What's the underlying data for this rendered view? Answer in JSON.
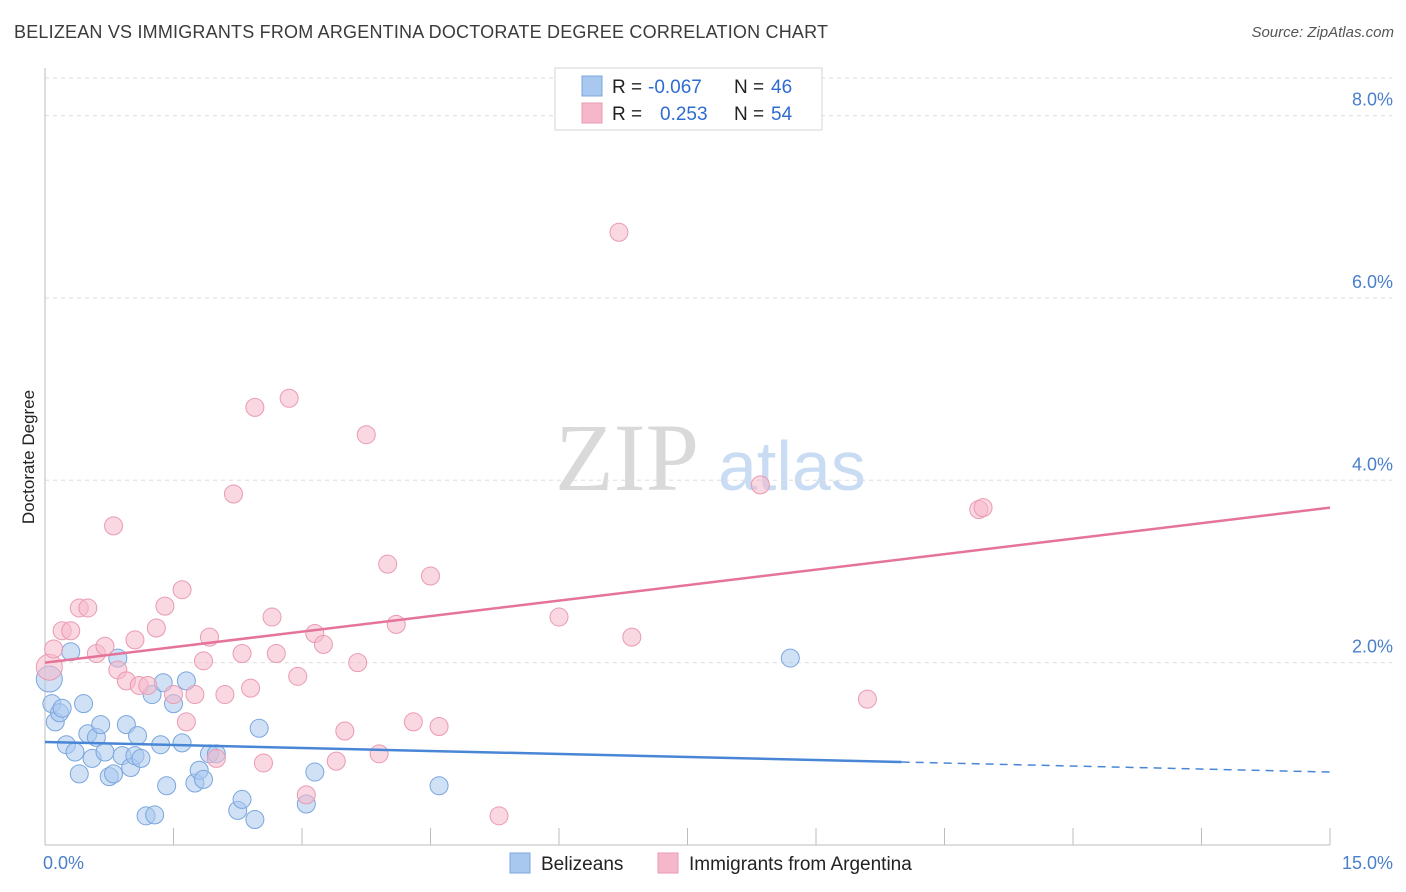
{
  "header": {
    "title": "BELIZEAN VS IMMIGRANTS FROM ARGENTINA DOCTORATE DEGREE CORRELATION CHART",
    "source": "Source: ZipAtlas.com"
  },
  "watermark": {
    "zip": "ZIP",
    "atlas": "atlas"
  },
  "legend": {
    "rows": [
      {
        "r_label": "R =",
        "r_value": "-0.067",
        "n_label": "N =",
        "n_value": "46",
        "color": "#a9c8ef"
      },
      {
        "r_label": "R =",
        "r_value": "0.253",
        "n_label": "N =",
        "n_value": "54",
        "color": "#f5b8cb"
      }
    ]
  },
  "bottom_legend": [
    {
      "label": "Belizeans",
      "color": "#a9c8ef"
    },
    {
      "label": "Immigrants from Argentina",
      "color": "#f5b8cb"
    }
  ],
  "chart_data": {
    "type": "scatter",
    "title": "BELIZEAN VS IMMIGRANTS FROM ARGENTINA DOCTORATE DEGREE CORRELATION CHART",
    "xlabel": "",
    "ylabel": "Doctorate Degree",
    "xlim": [
      0,
      15
    ],
    "ylim": [
      0,
      8.5
    ],
    "x_tick_labels": [
      "0.0%",
      "15.0%"
    ],
    "y_ticks": [
      2,
      4,
      6,
      8
    ],
    "y_tick_labels": [
      "2.0%",
      "4.0%",
      "6.0%",
      "8.0%"
    ],
    "grid": true,
    "colors": {
      "belizeans": "#4a86d6",
      "argentina": "#e5739a"
    },
    "series": [
      {
        "name": "Belizeans",
        "color": "#a9c8ef",
        "edge": "#7aa6dd",
        "trend": {
          "x0": 0,
          "y0": 1.13,
          "x1": 10.0,
          "y1": 0.91,
          "dash_x1": 15.0,
          "dash_y1": 0.8
        },
        "points": [
          [
            0.05,
            1.82
          ],
          [
            0.08,
            1.55
          ],
          [
            0.12,
            1.35
          ],
          [
            0.17,
            1.45
          ],
          [
            0.2,
            1.5
          ],
          [
            0.25,
            1.1
          ],
          [
            0.3,
            2.12
          ],
          [
            0.35,
            1.02
          ],
          [
            0.4,
            0.78
          ],
          [
            0.45,
            1.55
          ],
          [
            0.5,
            1.22
          ],
          [
            0.55,
            0.95
          ],
          [
            0.6,
            1.18
          ],
          [
            0.65,
            1.32
          ],
          [
            0.7,
            1.02
          ],
          [
            0.75,
            0.75
          ],
          [
            0.8,
            0.78
          ],
          [
            0.85,
            2.05
          ],
          [
            0.9,
            0.98
          ],
          [
            0.95,
            1.32
          ],
          [
            1.0,
            0.85
          ],
          [
            1.05,
            0.98
          ],
          [
            1.08,
            1.2
          ],
          [
            1.12,
            0.95
          ],
          [
            1.18,
            0.32
          ],
          [
            1.25,
            1.65
          ],
          [
            1.28,
            0.33
          ],
          [
            1.35,
            1.1
          ],
          [
            1.38,
            1.78
          ],
          [
            1.42,
            0.65
          ],
          [
            1.5,
            1.55
          ],
          [
            1.6,
            1.12
          ],
          [
            1.65,
            1.8
          ],
          [
            1.75,
            0.68
          ],
          [
            1.8,
            0.82
          ],
          [
            1.85,
            0.72
          ],
          [
            1.92,
            1.0
          ],
          [
            2.0,
            1.0
          ],
          [
            2.25,
            0.38
          ],
          [
            2.3,
            0.5
          ],
          [
            2.45,
            0.28
          ],
          [
            2.5,
            1.28
          ],
          [
            3.05,
            0.45
          ],
          [
            3.15,
            0.8
          ],
          [
            4.6,
            0.65
          ],
          [
            8.7,
            2.05
          ]
        ]
      },
      {
        "name": "Immigrants from Argentina",
        "color": "#f5b8cb",
        "edge": "#ea9ab3",
        "trend": {
          "x0": 0,
          "y0": 2.0,
          "x1": 15.0,
          "y1": 3.7
        },
        "points": [
          [
            0.05,
            1.95
          ],
          [
            0.1,
            2.15
          ],
          [
            0.2,
            2.35
          ],
          [
            0.3,
            2.35
          ],
          [
            0.4,
            2.6
          ],
          [
            0.5,
            2.6
          ],
          [
            0.6,
            2.1
          ],
          [
            0.7,
            2.18
          ],
          [
            0.8,
            3.5
          ],
          [
            0.85,
            1.92
          ],
          [
            0.95,
            1.8
          ],
          [
            1.05,
            2.25
          ],
          [
            1.1,
            1.75
          ],
          [
            1.2,
            1.75
          ],
          [
            1.3,
            2.38
          ],
          [
            1.4,
            2.62
          ],
          [
            1.5,
            1.65
          ],
          [
            1.6,
            2.8
          ],
          [
            1.65,
            1.35
          ],
          [
            1.75,
            1.65
          ],
          [
            1.85,
            2.02
          ],
          [
            1.92,
            2.28
          ],
          [
            2.0,
            0.95
          ],
          [
            2.1,
            1.65
          ],
          [
            2.2,
            3.85
          ],
          [
            2.3,
            2.1
          ],
          [
            2.4,
            1.72
          ],
          [
            2.45,
            4.8
          ],
          [
            2.55,
            0.9
          ],
          [
            2.65,
            2.5
          ],
          [
            2.7,
            2.1
          ],
          [
            2.85,
            4.9
          ],
          [
            2.95,
            1.85
          ],
          [
            3.05,
            0.55
          ],
          [
            3.15,
            2.32
          ],
          [
            3.25,
            2.2
          ],
          [
            3.4,
            0.92
          ],
          [
            3.5,
            1.25
          ],
          [
            3.65,
            2.0
          ],
          [
            3.75,
            4.5
          ],
          [
            3.9,
            1.0
          ],
          [
            4.0,
            3.08
          ],
          [
            4.1,
            2.42
          ],
          [
            4.3,
            1.35
          ],
          [
            4.5,
            2.95
          ],
          [
            4.6,
            1.3
          ],
          [
            5.3,
            0.32
          ],
          [
            6.0,
            2.5
          ],
          [
            6.7,
            6.72
          ],
          [
            6.85,
            2.28
          ],
          [
            8.35,
            3.95
          ],
          [
            9.6,
            1.6
          ],
          [
            10.9,
            3.68
          ],
          [
            10.95,
            3.7
          ]
        ]
      }
    ]
  }
}
